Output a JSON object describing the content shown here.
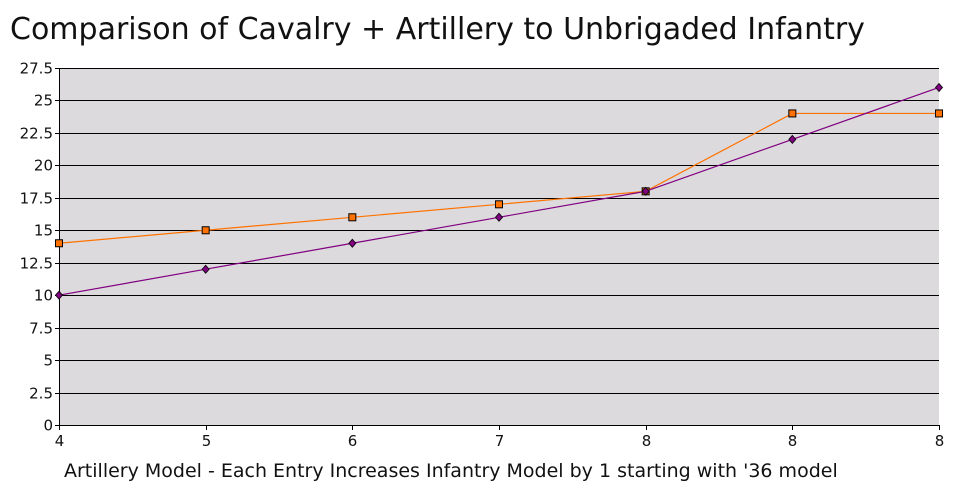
{
  "chart_data": {
    "type": "line",
    "title": "Comparison of Cavalry + Artillery to Unbrigaded Infantry",
    "xlabel": "Artillery Model - Each Entry Increases Infantry Model by 1 starting with '36 model",
    "ylabel": "",
    "categories": [
      "4",
      "5",
      "6",
      "7",
      "8",
      "8",
      "8"
    ],
    "ylim": [
      0,
      27.5
    ],
    "ytick_step": 2.5,
    "yticks": [
      "0",
      "2.5",
      "5",
      "7.5",
      "10",
      "12.5",
      "15",
      "17.5",
      "20",
      "22.5",
      "25",
      "27.5"
    ],
    "grid": true,
    "legend": "none",
    "plot_background": "#dddadd",
    "series": [
      {
        "marker": "square",
        "color": "#ff7200",
        "values": [
          14,
          15,
          16,
          17,
          18,
          24,
          24
        ]
      },
      {
        "marker": "diamond",
        "color": "#800080",
        "values": [
          10,
          12,
          14,
          16,
          18,
          22,
          26
        ]
      }
    ]
  }
}
